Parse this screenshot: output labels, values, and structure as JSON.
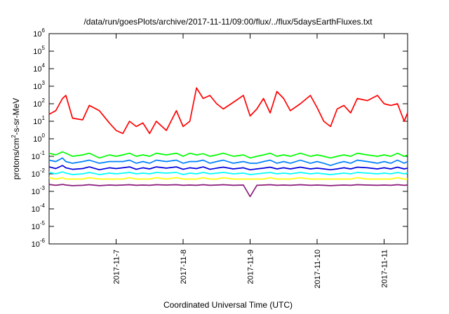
{
  "chart_data": {
    "type": "line",
    "title": "/data/run/goesPlots/archive/2017-11-11/09:00/flux/../flux/5daysEarthFluxes.txt",
    "xlabel": "Coordinated Universal Time (UTC)",
    "ylabel_main": "protons/cm",
    "ylabel_sup": "2",
    "ylabel_rest": "-s-sr-MeV",
    "x_ticks": [
      "2017-11-7",
      "2017-11-8",
      "2017-11-9",
      "2017-11-10",
      "2017-11-11"
    ],
    "xlim": [
      "2017-11-06",
      "2017-11-11 09:00"
    ],
    "y_scale": "log",
    "ylim": [
      1e-06,
      1000000.0
    ],
    "y_ticks": [
      {
        "base": "10",
        "exp": "-6"
      },
      {
        "base": "10",
        "exp": "-5"
      },
      {
        "base": "10",
        "exp": "-4"
      },
      {
        "base": "10",
        "exp": "-3"
      },
      {
        "base": "10",
        "exp": "-2"
      },
      {
        "base": "10",
        "exp": "-1"
      },
      {
        "base": "10",
        "exp": "0"
      },
      {
        "base": "10",
        "exp": "1"
      },
      {
        "base": "10",
        "exp": "2"
      },
      {
        "base": "10",
        "exp": "3"
      },
      {
        "base": "10",
        "exp": "4"
      },
      {
        "base": "10",
        "exp": "5"
      },
      {
        "base": "10",
        "exp": "6"
      }
    ],
    "grid": false,
    "legend": "none",
    "x_days": [
      0.0,
      0.1,
      0.2,
      0.25,
      0.35,
      0.5,
      0.6,
      0.75,
      0.9,
      1.0,
      1.1,
      1.2,
      1.3,
      1.4,
      1.5,
      1.6,
      1.75,
      1.9,
      2.0,
      2.1,
      2.2,
      2.3,
      2.4,
      2.5,
      2.6,
      2.75,
      2.9,
      3.0,
      3.1,
      3.2,
      3.3,
      3.4,
      3.5,
      3.6,
      3.75,
      3.9,
      4.0,
      4.1,
      4.2,
      4.3,
      4.4,
      4.5,
      4.6,
      4.75,
      4.9,
      5.0,
      5.1,
      5.2,
      5.3,
      5.4
    ],
    "series": [
      {
        "color": "#ff0000",
        "values": [
          25,
          40,
          200,
          300,
          15,
          12,
          80,
          40,
          8,
          3,
          2,
          10,
          5,
          8,
          2,
          10,
          3,
          40,
          5,
          10,
          800,
          200,
          300,
          100,
          50,
          120,
          300,
          20,
          50,
          200,
          30,
          500,
          200,
          40,
          100,
          300,
          60,
          10,
          5,
          50,
          80,
          30,
          200,
          150,
          300,
          100,
          80,
          100,
          10,
          30
        ]
      },
      {
        "color": "#00ff00",
        "values": [
          0.15,
          0.12,
          0.18,
          0.15,
          0.1,
          0.12,
          0.15,
          0.08,
          0.12,
          0.1,
          0.12,
          0.15,
          0.1,
          0.12,
          0.1,
          0.15,
          0.12,
          0.15,
          0.1,
          0.15,
          0.12,
          0.14,
          0.1,
          0.12,
          0.15,
          0.1,
          0.12,
          0.08,
          0.1,
          0.12,
          0.15,
          0.1,
          0.12,
          0.1,
          0.15,
          0.1,
          0.12,
          0.1,
          0.08,
          0.1,
          0.12,
          0.1,
          0.15,
          0.12,
          0.1,
          0.12,
          0.1,
          0.15,
          0.1,
          0.12
        ]
      },
      {
        "color": "#0080ff",
        "values": [
          0.06,
          0.05,
          0.08,
          0.05,
          0.04,
          0.05,
          0.06,
          0.04,
          0.05,
          0.05,
          0.05,
          0.06,
          0.04,
          0.05,
          0.04,
          0.06,
          0.05,
          0.06,
          0.04,
          0.05,
          0.05,
          0.06,
          0.04,
          0.05,
          0.06,
          0.04,
          0.05,
          0.04,
          0.04,
          0.05,
          0.06,
          0.04,
          0.05,
          0.04,
          0.06,
          0.04,
          0.05,
          0.04,
          0.03,
          0.04,
          0.05,
          0.04,
          0.06,
          0.05,
          0.04,
          0.05,
          0.04,
          0.06,
          0.04,
          0.05
        ]
      },
      {
        "color": "#00ffff",
        "values": [
          0.012,
          0.01,
          0.013,
          0.011,
          0.009,
          0.01,
          0.012,
          0.009,
          0.011,
          0.01,
          0.011,
          0.012,
          0.01,
          0.011,
          0.01,
          0.012,
          0.011,
          0.012,
          0.009,
          0.011,
          0.01,
          0.012,
          0.01,
          0.011,
          0.012,
          0.01,
          0.011,
          0.009,
          0.01,
          0.011,
          0.012,
          0.01,
          0.011,
          0.01,
          0.012,
          0.01,
          0.011,
          0.01,
          0.009,
          0.01,
          0.011,
          0.01,
          0.012,
          0.011,
          0.01,
          0.011,
          0.01,
          0.012,
          0.01,
          0.011
        ]
      },
      {
        "color": "#0000e0",
        "values": [
          0.025,
          0.02,
          0.03,
          0.022,
          0.018,
          0.02,
          0.025,
          0.017,
          0.022,
          0.02,
          0.022,
          0.025,
          0.018,
          0.022,
          0.019,
          0.025,
          0.021,
          0.025,
          0.018,
          0.022,
          0.02,
          0.025,
          0.018,
          0.021,
          0.024,
          0.019,
          0.022,
          0.017,
          0.019,
          0.021,
          0.024,
          0.019,
          0.022,
          0.019,
          0.024,
          0.019,
          0.021,
          0.019,
          0.017,
          0.019,
          0.022,
          0.019,
          0.024,
          0.022,
          0.019,
          0.022,
          0.019,
          0.024,
          0.019,
          0.021
        ]
      },
      {
        "color": "#ffff00",
        "values": [
          0.006,
          0.005,
          0.006,
          0.005,
          0.005,
          0.005,
          0.006,
          0.005,
          0.005,
          0.005,
          0.005,
          0.006,
          0.005,
          0.005,
          0.005,
          0.006,
          0.005,
          0.006,
          0.005,
          0.005,
          0.005,
          0.006,
          0.005,
          0.005,
          0.006,
          0.005,
          0.005,
          0.005,
          0.005,
          0.005,
          0.006,
          0.005,
          0.005,
          0.005,
          0.006,
          0.005,
          0.005,
          0.005,
          0.005,
          0.005,
          0.005,
          0.005,
          0.006,
          0.005,
          0.005,
          0.005,
          0.005,
          0.006,
          0.005,
          0.005
        ]
      },
      {
        "color": "#8b1a7a",
        "values": [
          0.0025,
          0.0022,
          0.0025,
          0.0023,
          0.0021,
          0.0022,
          0.0024,
          0.0021,
          0.0023,
          0.0022,
          0.0023,
          0.0024,
          0.0022,
          0.0023,
          0.0022,
          0.0024,
          0.0023,
          0.0024,
          0.0022,
          0.0023,
          0.0022,
          0.0024,
          0.0022,
          0.0023,
          0.0024,
          0.0022,
          0.0023,
          0.0005,
          0.0022,
          0.0023,
          0.0024,
          0.0022,
          0.0023,
          0.0022,
          0.0024,
          0.0022,
          0.0023,
          0.0022,
          0.0021,
          0.0022,
          0.0023,
          0.0022,
          0.0024,
          0.0023,
          0.0022,
          0.0023,
          0.0022,
          0.0024,
          0.0022,
          0.0023
        ]
      }
    ]
  }
}
